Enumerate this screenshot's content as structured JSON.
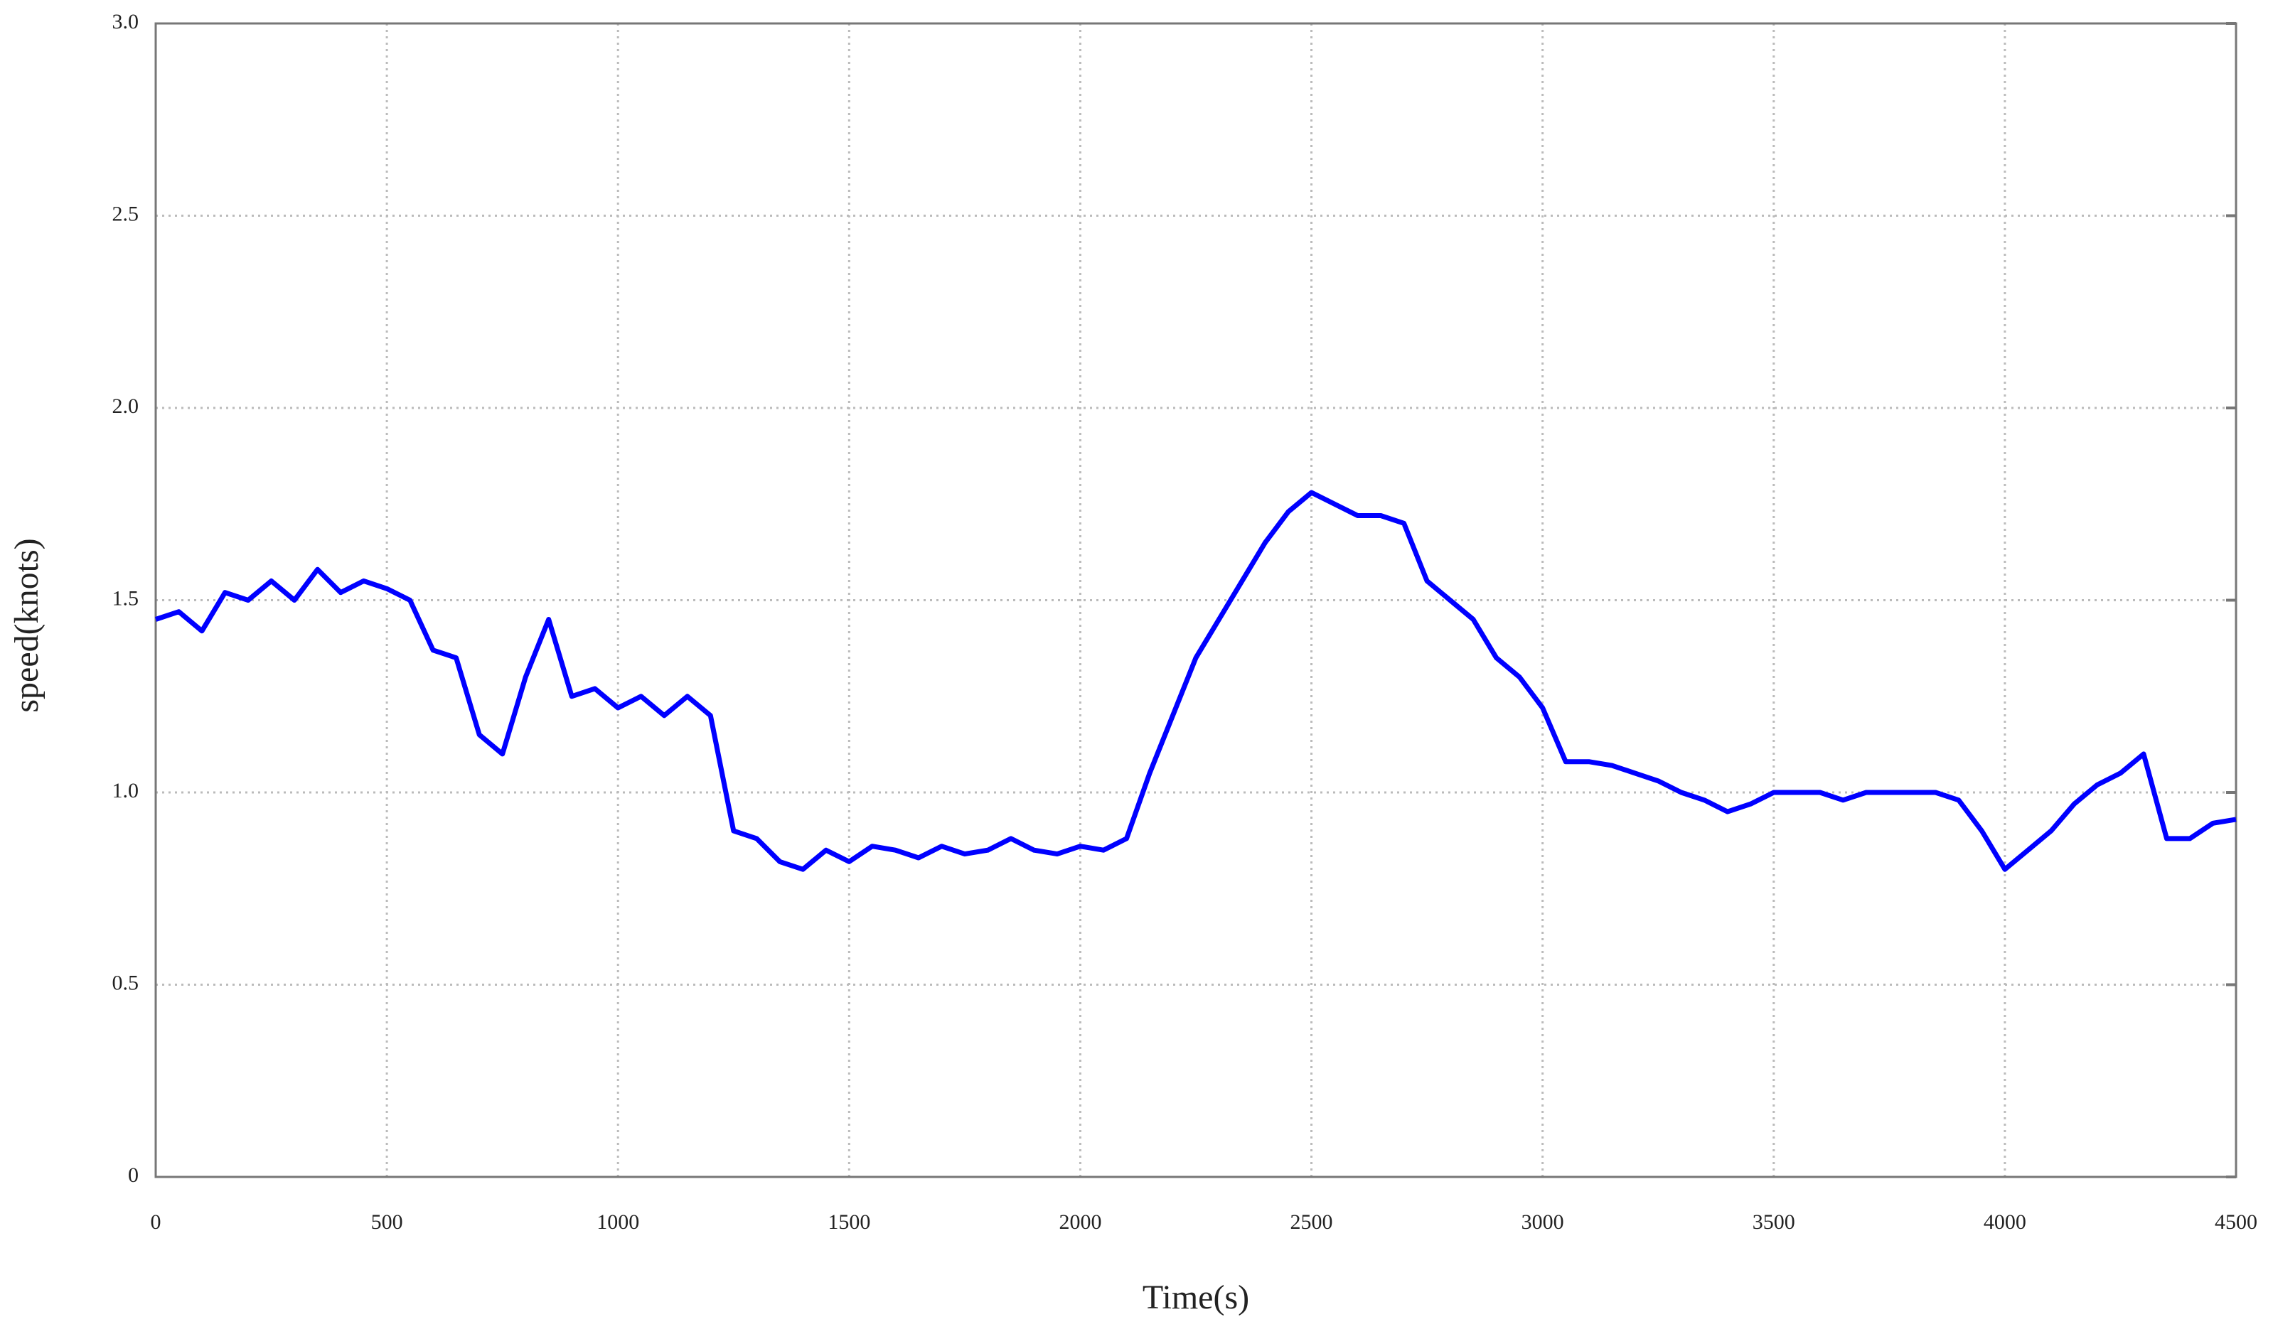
{
  "chart_data": {
    "type": "line",
    "xlabel": "Time(s)",
    "ylabel": "speed(knots)",
    "xlim": [
      0,
      4500
    ],
    "ylim": [
      0,
      3
    ],
    "xticks": [
      0,
      500,
      1000,
      1500,
      2000,
      2500,
      3000,
      3500,
      4000,
      4500
    ],
    "yticks": [
      0,
      0.5,
      {
        "value": 1,
        "label": "1.0"
      },
      1.5,
      {
        "value": 2,
        "label": "2.0"
      },
      2.5,
      {
        "value": 3,
        "label": "3.0"
      }
    ],
    "grid": true,
    "x": [
      0,
      50,
      100,
      150,
      200,
      250,
      300,
      350,
      400,
      450,
      500,
      550,
      600,
      650,
      700,
      750,
      800,
      850,
      900,
      950,
      1000,
      1050,
      1100,
      1150,
      1200,
      1250,
      1300,
      1350,
      1400,
      1450,
      1500,
      1550,
      1600,
      1650,
      1700,
      1750,
      1800,
      1850,
      1900,
      1950,
      2000,
      2050,
      2100,
      2150,
      2200,
      2250,
      2300,
      2350,
      2400,
      2450,
      2500,
      2550,
      2600,
      2650,
      2700,
      2750,
      2800,
      2850,
      2900,
      2950,
      3000,
      3050,
      3100,
      3150,
      3200,
      3250,
      3300,
      3350,
      3400,
      3450,
      3500,
      3550,
      3600,
      3650,
      3700,
      3750,
      3800,
      3850,
      3900,
      3950,
      4000,
      4050,
      4100,
      4150,
      4200,
      4250,
      4300,
      4350,
      4400,
      4450,
      4500
    ],
    "series": [
      {
        "color": "#0000ff",
        "values": [
          1.45,
          1.47,
          1.42,
          1.52,
          1.5,
          1.55,
          1.5,
          1.58,
          1.52,
          1.55,
          1.53,
          1.5,
          1.37,
          1.35,
          1.15,
          1.1,
          1.3,
          1.45,
          1.25,
          1.27,
          1.22,
          1.25,
          1.2,
          1.25,
          1.2,
          0.9,
          0.88,
          0.82,
          0.8,
          0.85,
          0.82,
          0.86,
          0.85,
          0.83,
          0.86,
          0.84,
          0.85,
          0.88,
          0.85,
          0.84,
          0.86,
          0.85,
          0.88,
          1.05,
          1.2,
          1.35,
          1.45,
          1.55,
          1.65,
          1.73,
          1.78,
          1.75,
          1.72,
          1.72,
          1.7,
          1.55,
          1.5,
          1.45,
          1.35,
          1.3,
          1.22,
          1.08,
          1.08,
          1.07,
          1.05,
          1.03,
          1.0,
          0.98,
          0.95,
          0.97,
          1.0,
          1.0,
          1.0,
          0.98,
          1.0,
          1.0,
          1.0,
          1.0,
          0.98,
          0.9,
          0.8,
          0.85,
          0.9,
          0.97,
          1.02,
          1.05,
          1.1,
          0.88,
          0.88,
          0.92,
          0.93
        ]
      }
    ]
  }
}
